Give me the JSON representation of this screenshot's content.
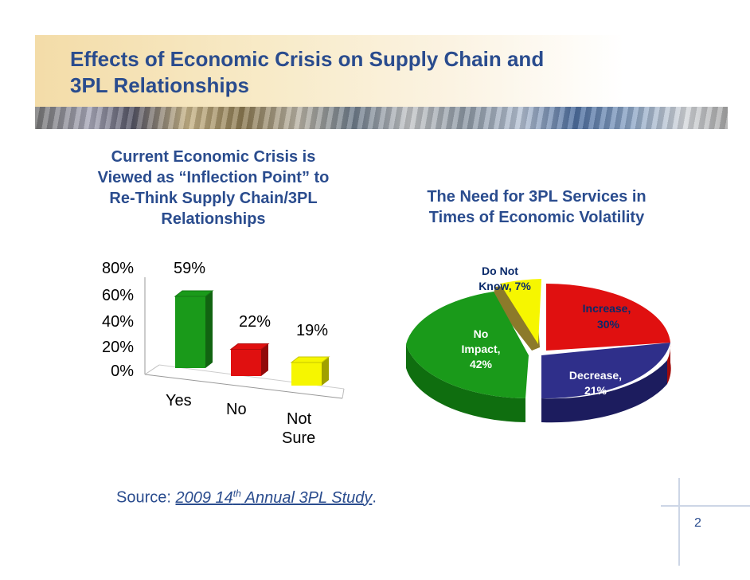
{
  "slide": {
    "title_line1": "Effects of Economic Crisis on Supply Chain and",
    "title_line2": "3PL Relationships",
    "page_number": "2"
  },
  "source": {
    "prefix": "Source:  ",
    "italic_before_sup": "2009 14",
    "sup": "th",
    "italic_after_sup": " Annual 3PL Study",
    "suffix": "."
  },
  "chart_data": [
    {
      "type": "bar",
      "title_lines": [
        "Current Economic Crisis is",
        "Viewed as “Inflection Point” to",
        "Re-Think Supply Chain/3PL",
        "Relationships"
      ],
      "categories": [
        "Yes",
        "No",
        "Not Sure"
      ],
      "category_label_lines": [
        [
          "Yes"
        ],
        [
          "No"
        ],
        [
          "Not",
          "Sure"
        ]
      ],
      "values": [
        59,
        22,
        19
      ],
      "data_labels": [
        "59%",
        "22%",
        "19%"
      ],
      "colors": [
        "#1a9a1a",
        "#e01010",
        "#f6f600"
      ],
      "yticks": [
        "0%",
        "20%",
        "40%",
        "60%",
        "80%"
      ],
      "ylim": [
        0,
        80
      ],
      "grid": false,
      "style": "3d"
    },
    {
      "type": "pie",
      "title_lines": [
        "The Need for 3PL Services in",
        "Times of Economic Volatility"
      ],
      "slices": [
        {
          "name": "Do Not Know",
          "value": 7,
          "label_lines": [
            "Do Not",
            "Know, 7%"
          ],
          "color": "#f6f600",
          "label_color": "#0a2a6a",
          "exploded": true
        },
        {
          "name": "Increase",
          "value": 30,
          "label_lines": [
            "Increase,",
            "30%"
          ],
          "color": "#e01010",
          "label_color": "#0a2a6a",
          "exploded": false
        },
        {
          "name": "Decrease",
          "value": 21,
          "label_lines": [
            "Decrease,",
            "21%"
          ],
          "color": "#2f2f8a",
          "label_color": "#ffffff",
          "exploded": false
        },
        {
          "name": "No Impact",
          "value": 42,
          "label_lines": [
            "No",
            "Impact,",
            "42%"
          ],
          "color": "#1a9a1a",
          "label_color": "#ffffff",
          "exploded": true
        }
      ],
      "style": "3d"
    }
  ]
}
